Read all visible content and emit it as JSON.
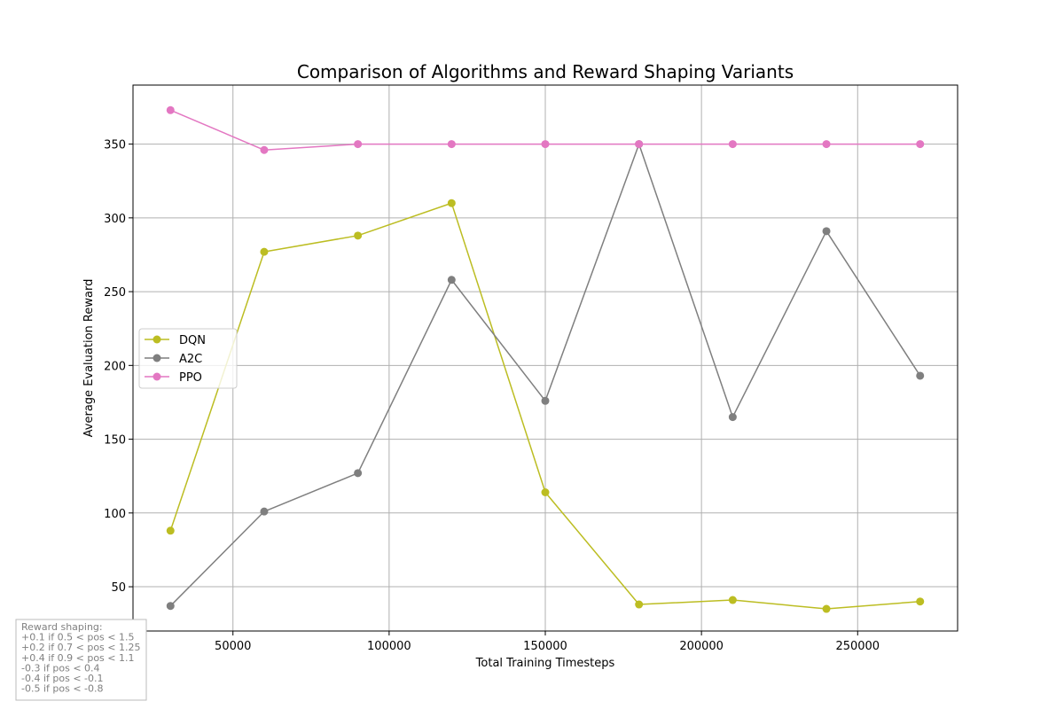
{
  "chart_data": {
    "type": "line",
    "title": "Comparison of Algorithms and Reward Shaping Variants",
    "xlabel": "Total Training Timesteps",
    "ylabel": "Average Evaluation Reward",
    "xlim": [
      18000,
      282000
    ],
    "ylim": [
      20,
      390
    ],
    "xticks": [
      50000,
      100000,
      150000,
      200000,
      250000
    ],
    "yticks": [
      50,
      100,
      150,
      200,
      250,
      300,
      350
    ],
    "grid": true,
    "legend_position": "center-left",
    "series": [
      {
        "name": "DQN",
        "color": "#bcbd22",
        "x": [
          30000,
          60000,
          90000,
          120000,
          150000,
          180000,
          210000,
          240000,
          270000
        ],
        "y": [
          88,
          277,
          288,
          310,
          114,
          38,
          41,
          35,
          40
        ]
      },
      {
        "name": "A2C",
        "color": "#7f7f7f",
        "x": [
          30000,
          60000,
          90000,
          120000,
          150000,
          180000,
          210000,
          240000,
          270000
        ],
        "y": [
          37,
          101,
          127,
          258,
          176,
          350,
          165,
          291,
          193
        ]
      },
      {
        "name": "PPO",
        "color": "#e377c2",
        "x": [
          30000,
          60000,
          90000,
          120000,
          150000,
          180000,
          210000,
          240000,
          270000
        ],
        "y": [
          373,
          346,
          350,
          350,
          350,
          350,
          350,
          350,
          350
        ]
      }
    ],
    "annotation": {
      "lines": [
        "Reward shaping:",
        "+0.1 if 0.5 < pos < 1.5",
        "+0.2 if 0.7 < pos < 1.25",
        "+0.4 if 0.9 < pos < 1.1",
        "-0.3 if pos < 0.4",
        "-0.4 if pos < -0.1",
        "-0.5 if pos < -0.8"
      ]
    }
  }
}
